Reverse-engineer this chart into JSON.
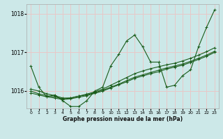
{
  "xlabel": "Graphe pression niveau de la mer (hPa)",
  "background_color": "#cce8e8",
  "grid_color": "#e8c8c8",
  "line_color": "#1a5c1a",
  "ylim": [
    1015.55,
    1018.25
  ],
  "xlim": [
    -0.5,
    23.5
  ],
  "yticks": [
    1016,
    1017,
    1018
  ],
  "xticks": [
    0,
    1,
    2,
    3,
    4,
    5,
    6,
    7,
    8,
    9,
    10,
    11,
    12,
    13,
    14,
    15,
    16,
    17,
    18,
    19,
    20,
    21,
    22,
    23
  ],
  "series": [
    {
      "x": [
        0,
        1,
        2,
        3,
        4,
        5,
        6,
        7,
        8,
        9,
        10,
        11,
        12,
        13,
        14,
        15,
        16,
        17,
        18,
        19,
        20,
        21,
        22,
        23
      ],
      "y": [
        1016.65,
        1016.1,
        1015.85,
        1015.9,
        1015.75,
        1015.6,
        1015.6,
        1015.75,
        1016.0,
        1016.1,
        1016.65,
        1016.95,
        1017.3,
        1017.45,
        1017.15,
        1016.75,
        1016.75,
        1016.1,
        1016.15,
        1016.4,
        1016.55,
        1017.15,
        1017.65,
        1018.1
      ]
    },
    {
      "x": [
        0,
        1,
        2,
        3,
        4,
        5,
        6,
        7,
        8,
        9,
        10,
        11,
        12,
        13,
        14,
        15,
        16,
        17,
        18,
        19,
        20,
        21,
        22,
        23
      ],
      "y": [
        1016.05,
        1016.0,
        1015.93,
        1015.88,
        1015.82,
        1015.82,
        1015.87,
        1015.92,
        1015.98,
        1016.05,
        1016.15,
        1016.25,
        1016.35,
        1016.45,
        1016.52,
        1016.58,
        1016.63,
        1016.68,
        1016.72,
        1016.78,
        1016.85,
        1016.93,
        1017.02,
        1017.12
      ]
    },
    {
      "x": [
        0,
        1,
        2,
        3,
        4,
        5,
        6,
        7,
        8,
        9,
        10,
        11,
        12,
        13,
        14,
        15,
        16,
        17,
        18,
        19,
        20,
        21,
        22,
        23
      ],
      "y": [
        1016.0,
        1015.93,
        1015.88,
        1015.85,
        1015.8,
        1015.82,
        1015.87,
        1015.9,
        1015.96,
        1016.02,
        1016.1,
        1016.18,
        1016.27,
        1016.36,
        1016.42,
        1016.48,
        1016.54,
        1016.6,
        1016.65,
        1016.7,
        1016.77,
        1016.85,
        1016.93,
        1017.03
      ]
    },
    {
      "x": [
        0,
        1,
        2,
        3,
        4,
        5,
        6,
        7,
        8,
        9,
        10,
        11,
        12,
        13,
        14,
        15,
        16,
        17,
        18,
        19,
        20,
        21,
        22,
        23
      ],
      "y": [
        1015.95,
        1015.9,
        1015.85,
        1015.82,
        1015.78,
        1015.8,
        1015.84,
        1015.88,
        1015.94,
        1016.0,
        1016.08,
        1016.16,
        1016.24,
        1016.33,
        1016.39,
        1016.45,
        1016.5,
        1016.57,
        1016.62,
        1016.67,
        1016.74,
        1016.82,
        1016.9,
        1017.0
      ]
    }
  ]
}
